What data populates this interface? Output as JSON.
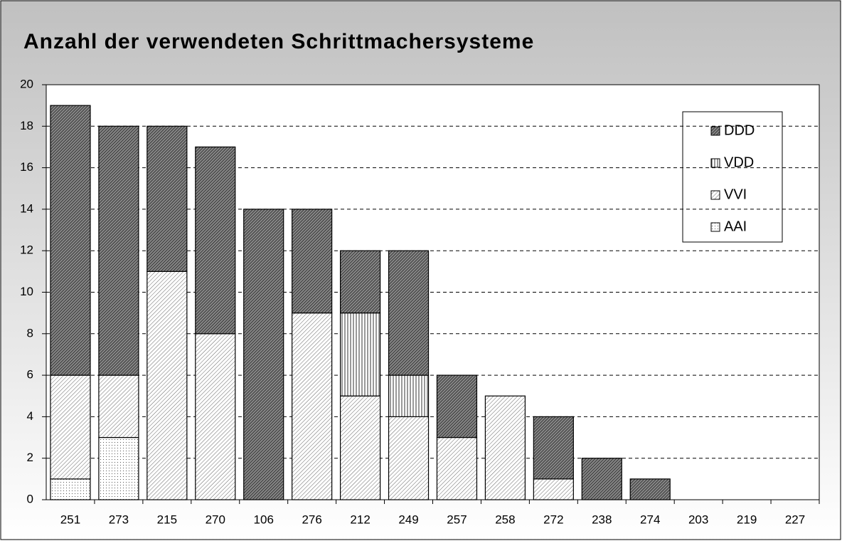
{
  "chart_data": {
    "type": "stacked-bar",
    "title": "Anzahl der verwendeten Schrittmachersysteme",
    "categories": [
      "251",
      "273",
      "215",
      "270",
      "106",
      "276",
      "212",
      "249",
      "257",
      "258",
      "272",
      "238",
      "274",
      "203",
      "219",
      "227"
    ],
    "series": [
      {
        "name": "AAI",
        "color": "#555555",
        "pattern": "dots",
        "values": [
          1,
          3,
          0,
          0,
          0,
          0,
          0,
          0,
          0,
          0,
          0,
          0,
          0,
          0,
          0,
          0
        ]
      },
      {
        "name": "VVI",
        "color": "#666666",
        "pattern": "diagonal",
        "values": [
          5,
          3,
          11,
          8,
          0,
          9,
          5,
          4,
          3,
          5,
          1,
          0,
          0,
          0,
          0,
          0
        ]
      },
      {
        "name": "VDD",
        "color": "#333333",
        "pattern": "vertical",
        "values": [
          0,
          0,
          0,
          0,
          0,
          0,
          4,
          2,
          0,
          0,
          0,
          0,
          0,
          0,
          0,
          0
        ]
      },
      {
        "name": "DDD",
        "color": "#222222",
        "pattern": "diagonal-dense",
        "values": [
          13,
          12,
          7,
          9,
          14,
          5,
          3,
          6,
          3,
          0,
          3,
          2,
          1,
          0,
          0,
          0
        ]
      }
    ],
    "ylim": [
      0,
      20
    ],
    "yticks": [
      0,
      2,
      4,
      6,
      8,
      10,
      12,
      14,
      16,
      18,
      20
    ],
    "grid": true,
    "legend": "top-right"
  }
}
